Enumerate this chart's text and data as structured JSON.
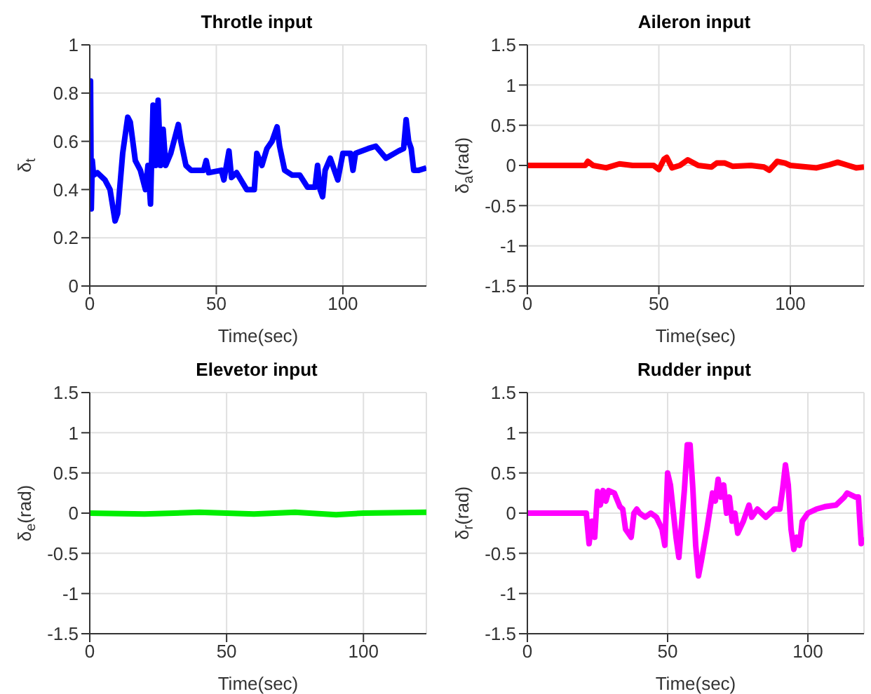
{
  "chart_data": [
    {
      "type": "line",
      "title": "Throtle input",
      "xlabel": "Time(sec)",
      "ylabel": "δ$_{t}$",
      "xlim": [
        0,
        133
      ],
      "xticks": [
        0,
        50,
        100
      ],
      "ylim": [
        0,
        1
      ],
      "yticks": [
        0,
        0.2,
        0.4,
        0.6,
        0.8,
        1
      ],
      "grid": true,
      "series": [
        {
          "color": "#0000ff",
          "x": [
            0,
            0.3,
            0.6,
            1,
            1.5,
            3,
            6,
            8,
            10,
            11,
            13,
            15,
            16,
            18,
            20,
            22,
            23,
            24,
            25,
            26,
            27,
            28,
            29,
            30,
            32,
            35,
            36,
            38,
            40,
            45,
            46,
            47,
            52,
            53,
            55,
            56,
            58,
            62,
            65,
            66,
            68,
            70,
            72,
            74,
            75,
            77,
            80,
            83,
            86,
            89,
            90,
            91,
            92,
            93,
            95,
            97,
            98,
            100,
            103,
            104,
            105,
            110,
            113,
            117,
            122,
            124,
            125,
            126,
            127,
            128,
            130,
            133
          ],
          "values": [
            0.48,
            0.85,
            0.32,
            0.52,
            0.46,
            0.47,
            0.44,
            0.4,
            0.27,
            0.3,
            0.55,
            0.7,
            0.68,
            0.52,
            0.48,
            0.4,
            0.5,
            0.34,
            0.75,
            0.5,
            0.77,
            0.5,
            0.65,
            0.5,
            0.55,
            0.67,
            0.6,
            0.5,
            0.48,
            0.48,
            0.52,
            0.47,
            0.48,
            0.44,
            0.56,
            0.45,
            0.47,
            0.4,
            0.4,
            0.55,
            0.5,
            0.57,
            0.6,
            0.66,
            0.58,
            0.48,
            0.46,
            0.46,
            0.41,
            0.41,
            0.5,
            0.4,
            0.37,
            0.48,
            0.53,
            0.47,
            0.44,
            0.55,
            0.55,
            0.48,
            0.55,
            0.57,
            0.58,
            0.53,
            0.56,
            0.57,
            0.69,
            0.6,
            0.57,
            0.48,
            0.48,
            0.49
          ]
        }
      ]
    },
    {
      "type": "line",
      "title": "Aileron input",
      "xlabel": "Time(sec)",
      "ylabel": "δ$_{a}$(rad)",
      "xlim": [
        0,
        128
      ],
      "xticks": [
        0,
        50,
        100
      ],
      "ylim": [
        -1.5,
        1.5
      ],
      "yticks": [
        -1.5,
        -1,
        -0.5,
        0,
        0.5,
        1,
        1.5
      ],
      "grid": true,
      "series": [
        {
          "color": "#ff0000",
          "x": [
            0,
            22,
            23,
            25,
            30,
            35,
            40,
            48,
            50,
            52,
            53,
            55,
            58,
            61,
            65,
            70,
            72,
            75,
            78,
            85,
            90,
            92,
            95,
            98,
            100,
            110,
            115,
            118,
            122,
            125,
            128
          ],
          "values": [
            0,
            0,
            0.05,
            0,
            -0.03,
            0.02,
            0,
            0,
            -0.05,
            0.08,
            0.1,
            -0.03,
            0,
            0.07,
            0,
            -0.02,
            0.03,
            0.03,
            -0.01,
            0,
            -0.02,
            -0.06,
            0.05,
            0.03,
            0,
            -0.03,
            0.01,
            0.04,
            0,
            -0.03,
            -0.02
          ]
        }
      ]
    },
    {
      "type": "line",
      "title": "Elevetor input",
      "xlabel": "Time(sec)",
      "ylabel": "δ$_{e}$(rad)",
      "xlim": [
        0,
        123
      ],
      "xticks": [
        0,
        50,
        100
      ],
      "ylim": [
        -1.5,
        1.5
      ],
      "yticks": [
        -1.5,
        -1,
        -0.5,
        0,
        0.5,
        1,
        1.5
      ],
      "grid": true,
      "series": [
        {
          "color": "#00ee00",
          "x": [
            0,
            20,
            40,
            60,
            75,
            90,
            100,
            123
          ],
          "values": [
            0,
            -0.01,
            0.01,
            -0.01,
            0.01,
            -0.02,
            0,
            0.01
          ]
        }
      ]
    },
    {
      "type": "line",
      "title": "Rudder input",
      "xlabel": "Time(sec)",
      "ylabel": "δ$_{r}$(rad)",
      "xlim": [
        0,
        120
      ],
      "xticks": [
        0,
        50,
        100
      ],
      "ylim": [
        -1.5,
        1.5
      ],
      "yticks": [
        -1.5,
        -1,
        -0.5,
        0,
        0.5,
        1,
        1.5
      ],
      "grid": true,
      "series": [
        {
          "color": "#ff00ff",
          "x": [
            0,
            21,
            22,
            23,
            24,
            25,
            26,
            27,
            28,
            29,
            31,
            33,
            34,
            35,
            37,
            38,
            39,
            40,
            42,
            44,
            46,
            48,
            49,
            50,
            51,
            53,
            54,
            56,
            57,
            58,
            59,
            60,
            61,
            62,
            64,
            66,
            67,
            68,
            69,
            70,
            71,
            72,
            73,
            74,
            75,
            77,
            79,
            80,
            82,
            85,
            88,
            90,
            91,
            92,
            93,
            94,
            95,
            96,
            97,
            98,
            100,
            103,
            106,
            110,
            113,
            114,
            117,
            118,
            119,
            120
          ],
          "values": [
            0,
            0,
            -0.38,
            -0.1,
            -0.3,
            0.27,
            0.1,
            0.28,
            0.15,
            0.28,
            0.25,
            0.08,
            0.05,
            -0.2,
            -0.3,
            0,
            0.05,
            0,
            -0.05,
            0,
            -0.05,
            -0.2,
            -0.4,
            0.5,
            0.35,
            -0.3,
            -0.55,
            0.3,
            0.85,
            0.85,
            0.3,
            -0.4,
            -0.78,
            -0.6,
            -0.2,
            0.25,
            0.15,
            0.42,
            0.2,
            0.35,
            0,
            0.2,
            -0.1,
            0,
            -0.25,
            -0.1,
            0.1,
            -0.05,
            0.05,
            -0.05,
            0.05,
            0.05,
            0.3,
            0.6,
            0.35,
            -0.2,
            -0.45,
            -0.3,
            -0.4,
            -0.1,
            0,
            0.05,
            0.08,
            0.1,
            0.2,
            0.25,
            0.2,
            0.2,
            -0.38,
            -0.3
          ]
        }
      ]
    }
  ]
}
